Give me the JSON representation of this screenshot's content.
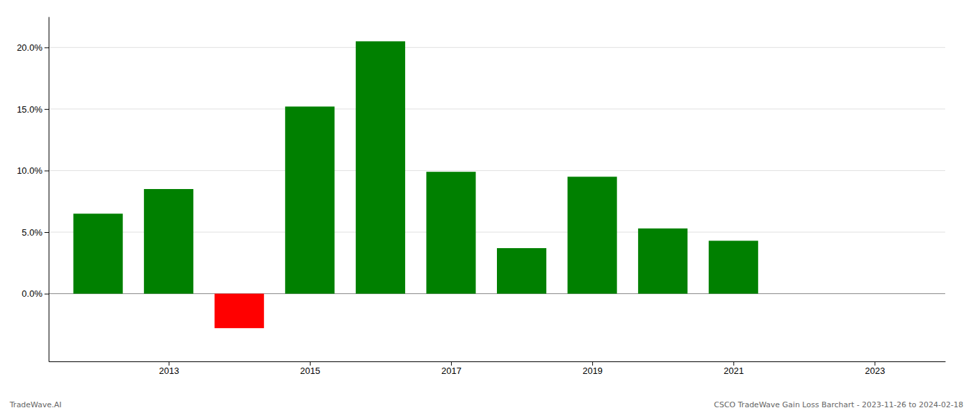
{
  "chart_data": {
    "type": "bar",
    "x": [
      2012,
      2013,
      2014,
      2015,
      2016,
      2017,
      2018,
      2019,
      2020,
      2021,
      2022
    ],
    "values": [
      0.065,
      0.085,
      -0.028,
      0.152,
      0.205,
      0.099,
      0.037,
      0.095,
      0.053,
      0.043,
      null
    ],
    "colors": [
      "#008000",
      "#008000",
      "#ff0000",
      "#008000",
      "#008000",
      "#008000",
      "#008000",
      "#008000",
      "#008000",
      "#008000",
      null
    ],
    "xlim": [
      2011.3,
      2024.0
    ],
    "ylim": [
      -0.055,
      0.225
    ],
    "xticks": [
      2013,
      2015,
      2017,
      2019,
      2021,
      2023
    ],
    "yticks": [
      {
        "value": 0.0,
        "label": "0.0%"
      },
      {
        "value": 0.05,
        "label": "5.0%"
      },
      {
        "value": 0.1,
        "label": "10.0%"
      },
      {
        "value": 0.15,
        "label": "15.0%"
      },
      {
        "value": 0.2,
        "label": "20.0%"
      }
    ],
    "grid": true,
    "annotations": [
      "TradeWave.AI",
      "CSCO TradeWave Gain Loss Barchart - 2023-11-26 to 2024-02-18"
    ]
  }
}
